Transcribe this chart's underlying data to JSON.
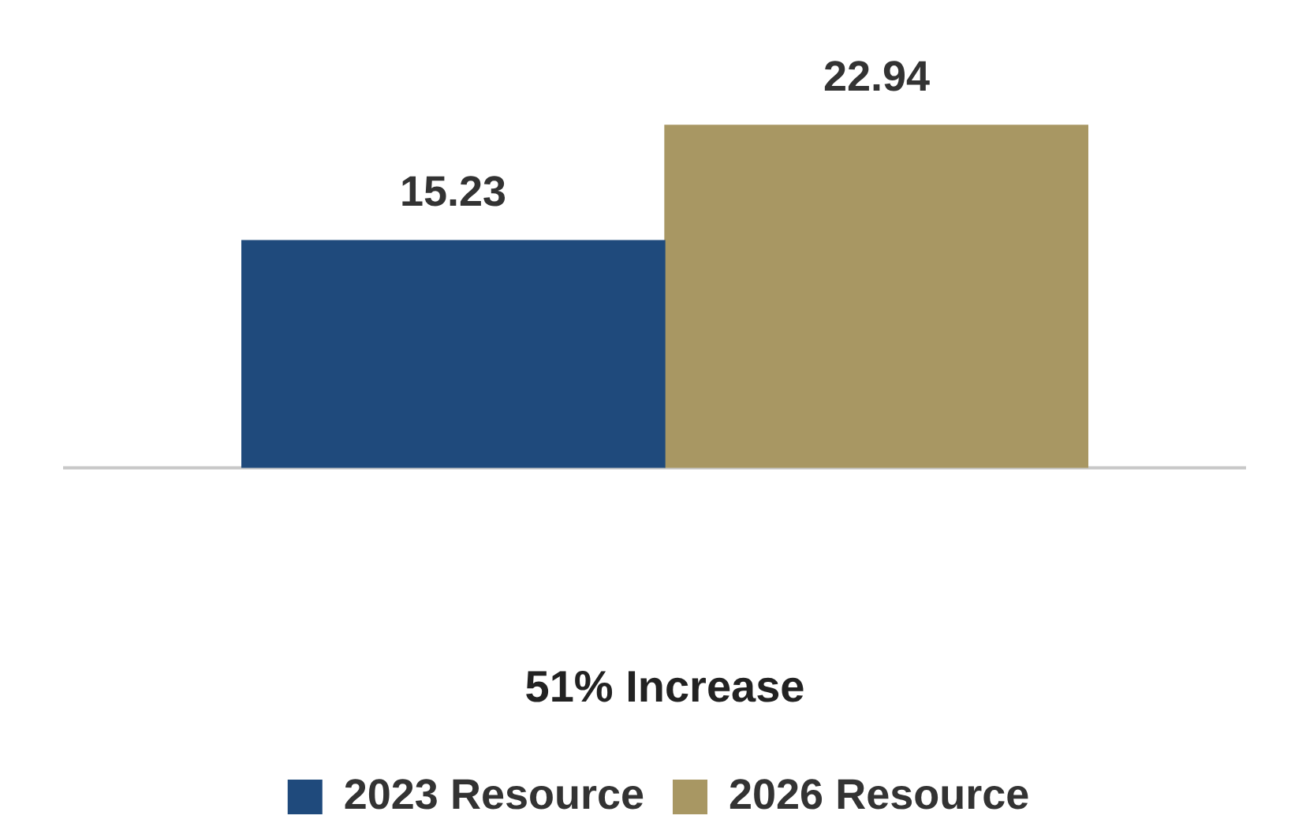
{
  "chart_data": {
    "type": "bar",
    "categories": [
      null,
      null
    ],
    "xlabel": "51% Increase",
    "stacked": true,
    "series": [
      {
        "name": "2023 Resource",
        "color": "#1f4a7c",
        "values": [
          15.23,
          null
        ]
      },
      {
        "name": "2026 Resource",
        "color": "#a89763",
        "values": [
          null,
          22.94
        ]
      }
    ],
    "grid": false,
    "data_labels": true,
    "legend": "bottom"
  }
}
